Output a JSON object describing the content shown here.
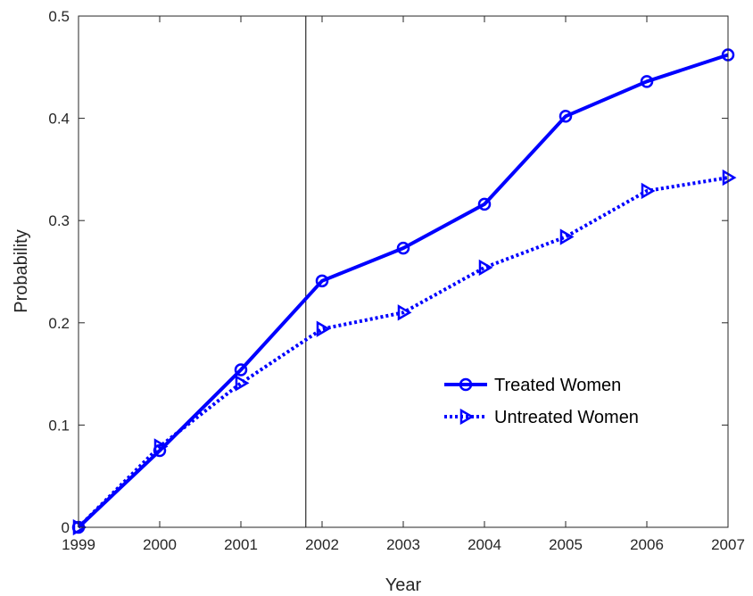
{
  "chart_data": {
    "type": "line",
    "title": "",
    "xlabel": "Year",
    "ylabel": "Probability",
    "x": [
      1999,
      2000,
      2001,
      2002,
      2003,
      2004,
      2005,
      2006,
      2007
    ],
    "x_tick_labels": [
      "1999",
      "2000",
      "2001",
      "2002",
      "2003",
      "2004",
      "2005",
      "2006",
      "2007"
    ],
    "y_ticks": [
      0,
      0.1,
      0.2,
      0.3,
      0.4,
      0.5
    ],
    "y_tick_labels": [
      "0",
      "0.1",
      "0.2",
      "0.3",
      "0.4",
      "0.5"
    ],
    "xlim": [
      1999,
      2007
    ],
    "ylim": [
      0,
      0.5
    ],
    "grid": false,
    "legend_placement": "center-right",
    "reference_line_x": 2001.8,
    "series": [
      {
        "name": "Treated Women",
        "line_style": "solid",
        "marker": "circle",
        "color": "#0000ff",
        "values": [
          0.0,
          0.075,
          0.154,
          0.241,
          0.273,
          0.316,
          0.402,
          0.436,
          0.462
        ]
      },
      {
        "name": "Untreated Women",
        "line_style": "dotted",
        "marker": "triangle-right",
        "color": "#0000ff",
        "values": [
          0.0,
          0.079,
          0.141,
          0.194,
          0.21,
          0.254,
          0.284,
          0.329,
          0.342
        ]
      }
    ]
  }
}
